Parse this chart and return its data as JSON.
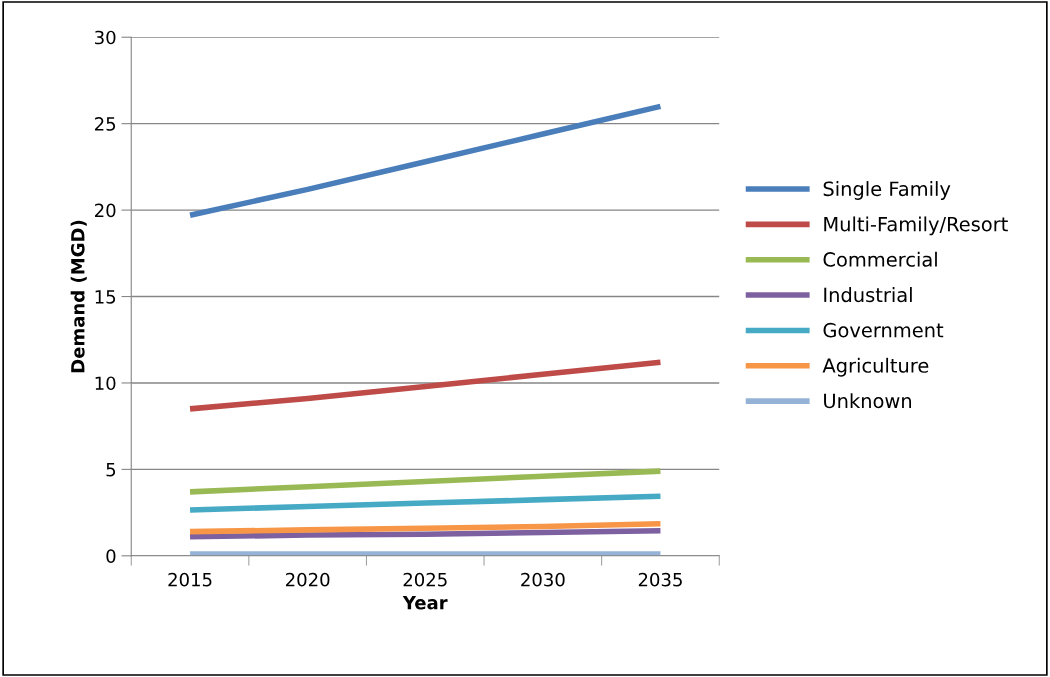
{
  "chart_data": {
    "type": "line",
    "xlabel": "Year",
    "ylabel": "Demand (MGD)",
    "categories": [
      "2015",
      "2020",
      "2025",
      "2030",
      "2035"
    ],
    "ylim": [
      0,
      30
    ],
    "yticks": [
      0,
      5,
      10,
      15,
      20,
      25,
      30
    ],
    "grid": "y",
    "legend": "right",
    "marker": "none",
    "line_style": "solid",
    "series": [
      {
        "name": "Single Family",
        "color": "#4a7ebb",
        "values": [
          19.7,
          21.2,
          22.8,
          24.4,
          26.0
        ]
      },
      {
        "name": "Multi-Family/Resort",
        "color": "#be4b48",
        "values": [
          8.5,
          9.1,
          9.8,
          10.5,
          11.2
        ]
      },
      {
        "name": "Commercial",
        "color": "#98b954",
        "values": [
          3.7,
          4.0,
          4.3,
          4.6,
          4.9
        ]
      },
      {
        "name": "Industrial",
        "color": "#7d60a0",
        "values": [
          1.1,
          1.2,
          1.25,
          1.35,
          1.45
        ]
      },
      {
        "name": "Government",
        "color": "#46aac5",
        "values": [
          2.65,
          2.85,
          3.05,
          3.25,
          3.45
        ]
      },
      {
        "name": "Agriculture",
        "color": "#f79646",
        "values": [
          1.4,
          1.5,
          1.6,
          1.7,
          1.85
        ]
      },
      {
        "name": "Unknown",
        "color": "#95b3d7",
        "values": [
          0.1,
          0.1,
          0.1,
          0.1,
          0.1
        ]
      }
    ]
  }
}
